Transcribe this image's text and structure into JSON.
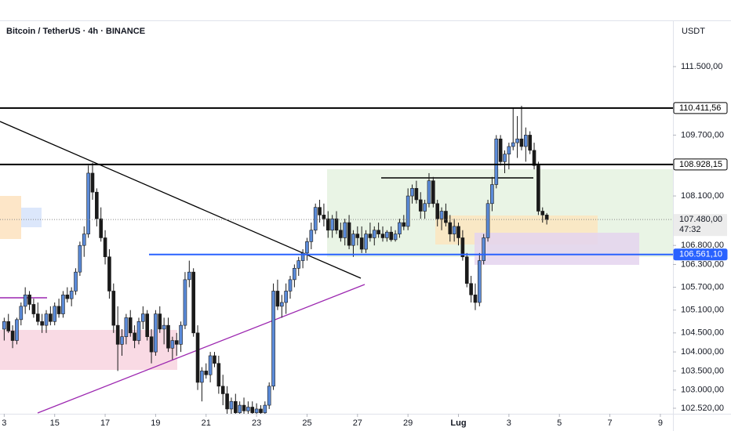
{
  "chart_data": {
    "type": "candlestick",
    "title": "Bitcoin / TetherUS · 4h · BINANCE",
    "currency": "USDT",
    "up_color": "#5b8bd9",
    "down_color": "#1a1a1a",
    "xlim": [
      -1,
      159
    ],
    "xticks": [
      {
        "value": 0,
        "label": "3"
      },
      {
        "value": 12,
        "label": "15"
      },
      {
        "value": 24,
        "label": "17"
      },
      {
        "value": 36,
        "label": "19"
      },
      {
        "value": 48,
        "label": "21"
      },
      {
        "value": 60,
        "label": "23"
      },
      {
        "value": 72,
        "label": "25"
      },
      {
        "value": 84,
        "label": "27"
      },
      {
        "value": 96,
        "label": "29"
      },
      {
        "value": 108,
        "label": "Lug"
      },
      {
        "value": 120,
        "label": "3"
      },
      {
        "value": 132,
        "label": "5"
      },
      {
        "value": 144,
        "label": "7"
      },
      {
        "value": 156,
        "label": "9"
      }
    ],
    "ylim": [
      102375,
      112695
    ],
    "yticks": [
      {
        "value": 111500,
        "label": "111.500,00"
      },
      {
        "value": 109700,
        "label": "109.700,00"
      },
      {
        "value": 108100,
        "label": "108.100,00"
      },
      {
        "value": 106800,
        "label": "106.800,00"
      },
      {
        "value": 106300,
        "label": "106.300,00"
      },
      {
        "value": 105700,
        "label": "105.700,00"
      },
      {
        "value": 105100,
        "label": "105.100,00"
      },
      {
        "value": 104500,
        "label": "104.500,00"
      },
      {
        "value": 104000,
        "label": "104.000,00"
      },
      {
        "value": 103500,
        "label": "103.500,00"
      },
      {
        "value": 103000,
        "label": "103.000,00"
      },
      {
        "value": 102520,
        "label": "102.520,00"
      }
    ],
    "price_lines": [
      {
        "value": 110411.56,
        "label": "110.411,56",
        "color": "#000000"
      },
      {
        "value": 108928.15,
        "label": "108.928,15",
        "color": "#000000"
      },
      {
        "value": 106561.1,
        "label": "106.561,10",
        "color": "#2962ff"
      }
    ],
    "last_price": {
      "value": 107480,
      "label": "107.480,00",
      "countdown": "47:32"
    },
    "candles": [
      [
        104600,
        104900,
        104300,
        104800
      ],
      [
        104800,
        105000,
        104500,
        104550
      ],
      [
        104550,
        104700,
        104100,
        104300
      ],
      [
        104300,
        104900,
        104200,
        104850
      ],
      [
        104850,
        105300,
        104700,
        105200
      ],
      [
        105200,
        105700,
        105000,
        105500
      ],
      [
        105500,
        105600,
        105100,
        105250
      ],
      [
        105250,
        105400,
        104900,
        105000
      ],
      [
        105000,
        105300,
        104700,
        104800
      ],
      [
        104800,
        105000,
        104500,
        104700
      ],
      [
        104700,
        105100,
        104500,
        105000
      ],
      [
        105000,
        105200,
        104700,
        104800
      ],
      [
        104800,
        105300,
        104700,
        105200
      ],
      [
        105200,
        105400,
        104900,
        105000
      ],
      [
        105000,
        105600,
        104900,
        105500
      ],
      [
        105500,
        105700,
        105300,
        105400
      ],
      [
        105400,
        105700,
        105200,
        105600
      ],
      [
        105600,
        106200,
        105500,
        106100
      ],
      [
        106100,
        106900,
        106000,
        106800
      ],
      [
        106800,
        107300,
        106500,
        107100
      ],
      [
        107100,
        108900,
        107000,
        108700
      ],
      [
        108700,
        108970,
        108000,
        108200
      ],
      [
        108200,
        108300,
        107300,
        107500
      ],
      [
        107500,
        107800,
        106900,
        107000
      ],
      [
        107000,
        107200,
        106300,
        106500
      ],
      [
        106500,
        106700,
        105400,
        105600
      ],
      [
        105600,
        105800,
        104500,
        104700
      ],
      [
        104700,
        105200,
        103500,
        104200
      ],
      [
        104200,
        104600,
        103900,
        104400
      ],
      [
        104400,
        105000,
        104200,
        104900
      ],
      [
        104900,
        105100,
        104400,
        104500
      ],
      [
        104500,
        104700,
        104100,
        104300
      ],
      [
        104300,
        104900,
        104200,
        104800
      ],
      [
        104800,
        105200,
        104600,
        105000
      ],
      [
        105000,
        105100,
        104300,
        104400
      ],
      [
        104400,
        104600,
        103700,
        104000
      ],
      [
        104000,
        105100,
        103900,
        105000
      ],
      [
        105000,
        105200,
        104500,
        104600
      ],
      [
        104600,
        104900,
        104200,
        104700
      ],
      [
        104700,
        104900,
        104000,
        104100
      ],
      [
        104100,
        104400,
        103800,
        104300
      ],
      [
        104300,
        104500,
        103900,
        104200
      ],
      [
        104200,
        104800,
        104000,
        104700
      ],
      [
        104700,
        106100,
        104600,
        105900
      ],
      [
        105900,
        106400,
        105700,
        106100
      ],
      [
        106100,
        106200,
        104400,
        104500
      ],
      [
        104500,
        104700,
        103000,
        103200
      ],
      [
        103200,
        103600,
        102700,
        103500
      ],
      [
        103500,
        103700,
        103300,
        103400
      ],
      [
        103400,
        104000,
        103200,
        103900
      ],
      [
        103900,
        104000,
        103600,
        103700
      ],
      [
        103700,
        103900,
        102900,
        103100
      ],
      [
        103100,
        103400,
        102600,
        102900
      ],
      [
        102900,
        103100,
        102300,
        102500
      ],
      [
        102500,
        102800,
        102200,
        102700
      ],
      [
        102700,
        102900,
        102300,
        102400
      ],
      [
        102400,
        102700,
        102200,
        102600
      ],
      [
        102600,
        102800,
        102300,
        102450
      ],
      [
        102450,
        102700,
        102300,
        102550
      ],
      [
        102550,
        102700,
        102250,
        102400
      ],
      [
        102400,
        102650,
        102280,
        102500
      ],
      [
        102500,
        102600,
        102300,
        102400
      ],
      [
        102400,
        102700,
        102300,
        102600
      ],
      [
        102600,
        103200,
        102500,
        103100
      ],
      [
        103100,
        105800,
        103000,
        105600
      ],
      [
        105600,
        105900,
        105100,
        105200
      ],
      [
        105200,
        105500,
        104900,
        105300
      ],
      [
        105300,
        105800,
        105000,
        105600
      ],
      [
        105600,
        106000,
        105400,
        105900
      ],
      [
        105900,
        106300,
        105700,
        106200
      ],
      [
        106200,
        106500,
        106000,
        106400
      ],
      [
        106400,
        106700,
        106200,
        106600
      ],
      [
        106600,
        107000,
        106400,
        106900
      ],
      [
        106900,
        107400,
        106700,
        107200
      ],
      [
        107200,
        107900,
        107100,
        107800
      ],
      [
        107800,
        108000,
        107400,
        107600
      ],
      [
        107600,
        107900,
        107300,
        107500
      ],
      [
        107500,
        107700,
        107000,
        107200
      ],
      [
        107200,
        107600,
        107000,
        107500
      ],
      [
        107500,
        107700,
        107100,
        107200
      ],
      [
        107200,
        107400,
        106900,
        107000
      ],
      [
        107000,
        107500,
        106800,
        107400
      ],
      [
        107400,
        107600,
        106700,
        106800
      ],
      [
        106800,
        107200,
        106500,
        107100
      ],
      [
        107100,
        107300,
        106800,
        107000
      ],
      [
        107000,
        107300,
        106600,
        106700
      ],
      [
        106700,
        107200,
        106600,
        107100
      ],
      [
        107100,
        107400,
        106900,
        107000
      ],
      [
        107000,
        107300,
        106800,
        107200
      ],
      [
        107200,
        107400,
        107000,
        107100
      ],
      [
        107100,
        107300,
        106900,
        107000
      ],
      [
        107000,
        107200,
        106900,
        107150
      ],
      [
        107150,
        107300,
        106900,
        106950
      ],
      [
        106950,
        107200,
        106900,
        107100
      ],
      [
        107100,
        107500,
        107000,
        107400
      ],
      [
        107400,
        107600,
        107200,
        107300
      ],
      [
        107300,
        108300,
        107200,
        108100
      ],
      [
        108100,
        108400,
        107900,
        108300
      ],
      [
        108300,
        108500,
        107900,
        108000
      ],
      [
        108000,
        108200,
        107500,
        107700
      ],
      [
        107700,
        108000,
        107500,
        107900
      ],
      [
        107900,
        108700,
        107800,
        108500
      ],
      [
        108500,
        108600,
        107800,
        107900
      ],
      [
        107900,
        108000,
        107300,
        107500
      ],
      [
        107500,
        107800,
        107200,
        107700
      ],
      [
        107700,
        107900,
        107300,
        107400
      ],
      [
        107400,
        107600,
        106900,
        107100
      ],
      [
        107100,
        107500,
        106900,
        107300
      ],
      [
        107300,
        107400,
        106800,
        107000
      ],
      [
        107000,
        107200,
        106400,
        106500
      ],
      [
        106500,
        106600,
        105700,
        105800
      ],
      [
        105800,
        106000,
        105300,
        105500
      ],
      [
        105500,
        105800,
        105100,
        105300
      ],
      [
        105300,
        106600,
        105200,
        106400
      ],
      [
        106400,
        107100,
        106300,
        107000
      ],
      [
        107000,
        108000,
        106900,
        107900
      ],
      [
        107900,
        108600,
        107700,
        108400
      ],
      [
        108400,
        109700,
        108300,
        109600
      ],
      [
        109600,
        109700,
        108900,
        109000
      ],
      [
        109000,
        109300,
        108700,
        109200
      ],
      [
        109200,
        109500,
        108800,
        109400
      ],
      [
        109400,
        110400,
        109300,
        109500
      ],
      [
        109500,
        110200,
        109100,
        109600
      ],
      [
        109600,
        110470,
        109300,
        109400
      ],
      [
        109400,
        109900,
        109000,
        109700
      ],
      [
        109700,
        109800,
        109200,
        109300
      ],
      [
        109300,
        109500,
        108800,
        108900
      ],
      [
        108900,
        109000,
        107600,
        107700
      ],
      [
        107700,
        107800,
        107400,
        107600
      ],
      [
        107600,
        107650,
        107350,
        107480
      ]
    ]
  }
}
